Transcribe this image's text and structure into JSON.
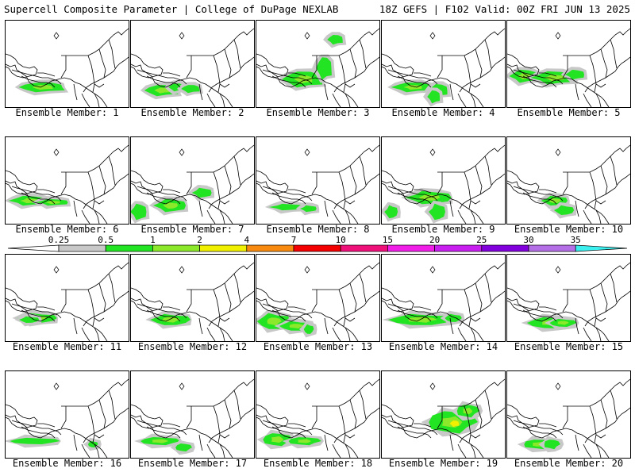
{
  "header": {
    "left": "Supercell Composite Parameter | College of DuPage NEXLAB",
    "right": "18Z GEFS | F102 Valid: 00Z FRI JUN 13 2025"
  },
  "colorbar": {
    "ticks": [
      "0.25",
      "0.5",
      "1",
      "2",
      "4",
      "7",
      "10",
      "15",
      "20",
      "25",
      "30",
      "35"
    ],
    "colors": [
      "#c8c8c8",
      "#22e422",
      "#8ce82a",
      "#f0f000",
      "#f88a10",
      "#f40000",
      "#f0107a",
      "#f01ee6",
      "#c81ef0",
      "#8200dc",
      "#b46ee6",
      "#3cf0f0"
    ]
  },
  "panel_label_prefix": "Ensemble Member: ",
  "panels": [
    {
      "label": "Ensemble Member: 1",
      "member": 1,
      "intensity": "low"
    },
    {
      "label": "Ensemble Member: 2",
      "member": 2,
      "intensity": "medium"
    },
    {
      "label": "Ensemble Member: 3",
      "member": 3,
      "intensity": "medium"
    },
    {
      "label": "Ensemble Member: 4",
      "member": 4,
      "intensity": "medium"
    },
    {
      "label": "Ensemble Member: 5",
      "member": 5,
      "intensity": "medium"
    },
    {
      "label": "Ensemble Member: 6",
      "member": 6,
      "intensity": "low"
    },
    {
      "label": "Ensemble Member: 7",
      "member": 7,
      "intensity": "medium"
    },
    {
      "label": "Ensemble Member: 8",
      "member": 8,
      "intensity": "minimal"
    },
    {
      "label": "Ensemble Member: 9",
      "member": 9,
      "intensity": "medium"
    },
    {
      "label": "Ensemble Member: 10",
      "member": 10,
      "intensity": "low"
    },
    {
      "label": "Ensemble Member: 11",
      "member": 11,
      "intensity": "low"
    },
    {
      "label": "Ensemble Member: 12",
      "member": 12,
      "intensity": "low"
    },
    {
      "label": "Ensemble Member: 13",
      "member": 13,
      "intensity": "low"
    },
    {
      "label": "Ensemble Member: 14",
      "member": 14,
      "intensity": "medium"
    },
    {
      "label": "Ensemble Member: 15",
      "member": 15,
      "intensity": "low"
    },
    {
      "label": "Ensemble Member: 16",
      "member": 16,
      "intensity": "minimal"
    },
    {
      "label": "Ensemble Member: 17",
      "member": 17,
      "intensity": "low"
    },
    {
      "label": "Ensemble Member: 18",
      "member": 18,
      "intensity": "low"
    },
    {
      "label": "Ensemble Member: 19",
      "member": 19,
      "intensity": "high"
    },
    {
      "label": "Ensemble Member: 20",
      "member": 20,
      "intensity": "low"
    }
  ]
}
